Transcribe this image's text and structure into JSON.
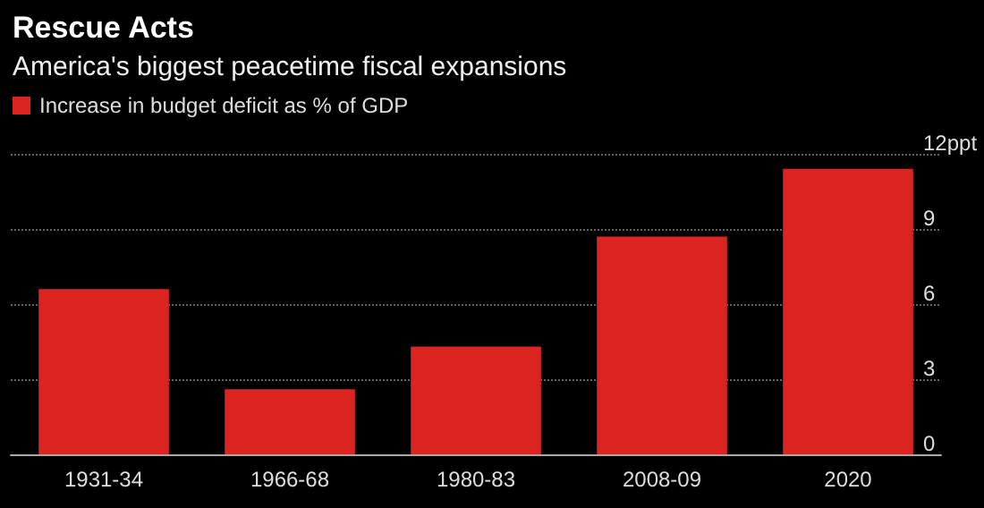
{
  "chart_data": {
    "type": "bar",
    "title": "Rescue Acts",
    "subtitle": "America's biggest peacetime fiscal expansions",
    "categories": [
      "1931-34",
      "1966-68",
      "1980-83",
      "2008-09",
      "2020"
    ],
    "series": [
      {
        "name": "Increase in budget deficit as % of GDP",
        "color": "#dc2420",
        "values": [
          6.6,
          2.6,
          4.3,
          8.7,
          11.4
        ]
      }
    ],
    "ylim": [
      0,
      12
    ],
    "yticks": [
      0,
      3,
      6,
      9,
      {
        "value": 12,
        "label": "12ppt"
      }
    ],
    "grid": "y",
    "legend": "top left"
  }
}
